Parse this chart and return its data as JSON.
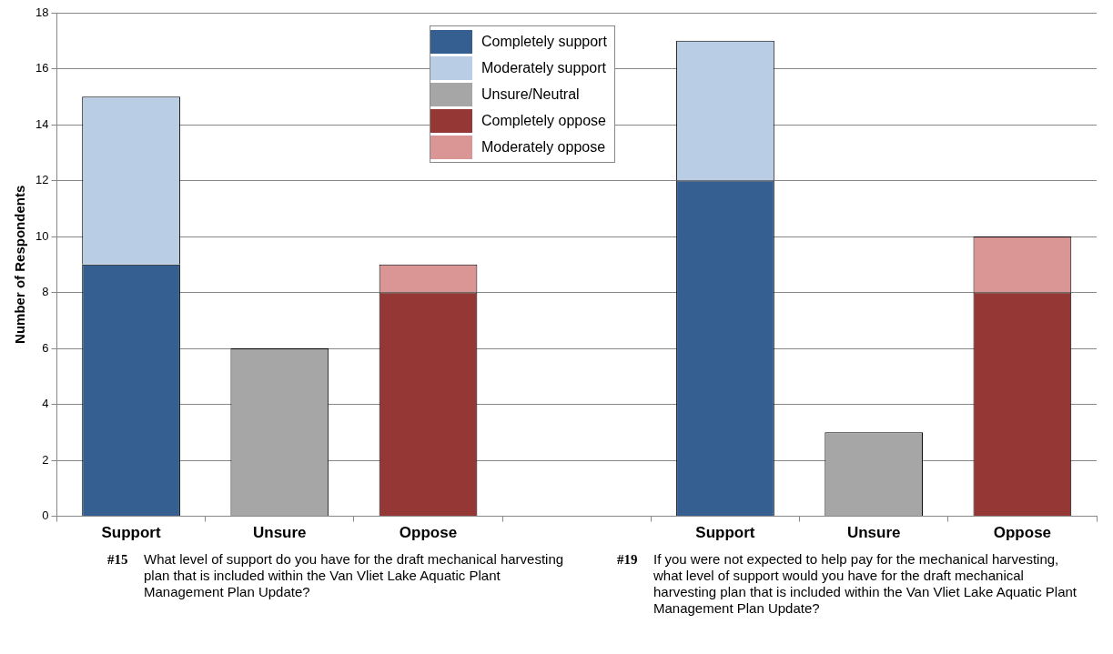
{
  "chart_data": {
    "type": "bar",
    "ylabel": "Number of Respondents",
    "categories": [
      "Support",
      "Unsure",
      "Oppose",
      null,
      "Support",
      "Unsure",
      "Oppose"
    ],
    "series": [
      {
        "name": "Completely support",
        "color": "#355f91",
        "values": [
          9,
          null,
          null,
          null,
          12,
          null,
          null
        ]
      },
      {
        "name": "Moderately support",
        "color": "#b9cde5",
        "values": [
          6,
          null,
          null,
          null,
          5,
          null,
          null
        ]
      },
      {
        "name": "Unsure/Neutral",
        "color": "#a6a6a6",
        "values": [
          null,
          6,
          null,
          null,
          null,
          3,
          null
        ]
      },
      {
        "name": "Completely oppose",
        "color": "#953735",
        "values": [
          null,
          null,
          8,
          null,
          null,
          null,
          8
        ]
      },
      {
        "name": "Moderately oppose",
        "color": "#d99694",
        "values": [
          null,
          null,
          1,
          null,
          null,
          null,
          2
        ]
      }
    ],
    "stacked": true,
    "ylim": [
      0,
      18
    ],
    "yticks": [
      0,
      2,
      4,
      6,
      8,
      10,
      12,
      14,
      16,
      18
    ],
    "grid": "y",
    "legend": "top",
    "annotations": [
      "#15 What level of support do you have for the draft mechanical harvesting plan that is included within the Van Vliet Lake Aquatic Plant Management Plan Update?",
      "#19 If you were not expected to help pay for the mechanical harvesting, what level of support would you have for the draft mechanical harvesting plan that is included within the Van Vliet Lake Aquatic Plant Management Plan Update?"
    ]
  }
}
